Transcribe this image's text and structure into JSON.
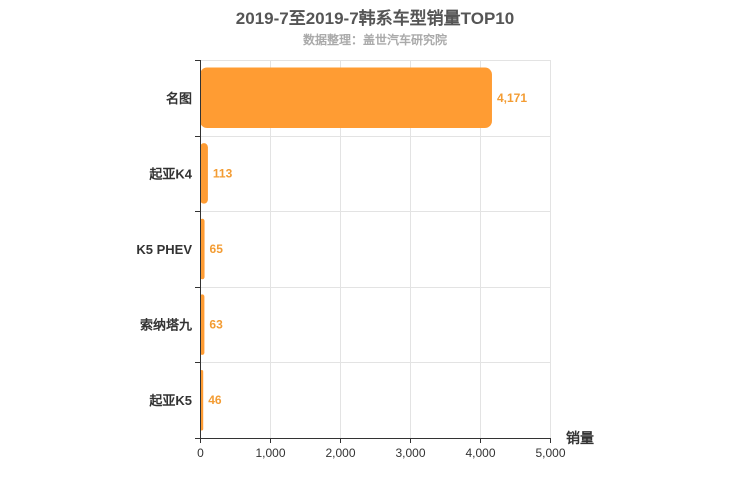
{
  "chart_data": {
    "type": "bar",
    "orientation": "horizontal",
    "title": "2019-7至2019-7韩系车型销量TOP10",
    "subtitle": "数据整理：盖世汽车研究院",
    "categories": [
      "名图",
      "起亚K4",
      "K5 PHEV",
      "索纳塔九",
      "起亚K5"
    ],
    "values": [
      4171,
      113,
      65,
      63,
      46
    ],
    "value_labels": [
      "4,171",
      "113",
      "65",
      "63",
      "46"
    ],
    "xlabel": "销量",
    "xlim": [
      0,
      5000
    ],
    "xticks": [
      0,
      1000,
      2000,
      3000,
      4000,
      5000
    ],
    "xtick_labels": [
      "0",
      "1,000",
      "2,000",
      "3,000",
      "4,000",
      "5,000"
    ],
    "grid": true,
    "bar_color": "#ff9c33"
  }
}
